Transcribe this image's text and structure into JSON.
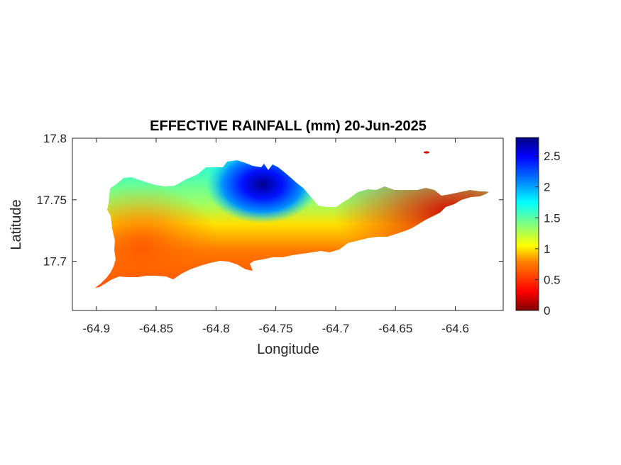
{
  "chart_data": {
    "type": "heatmap",
    "title": "EFFECTIVE RAINFALL (mm) 20-Jun-2025",
    "xlabel": "Longitude",
    "ylabel": "Latitude",
    "xlim": [
      -64.92,
      -64.56
    ],
    "ylim": [
      17.66,
      17.8
    ],
    "xticks": [
      -64.9,
      -64.85,
      -64.8,
      -64.75,
      -64.7,
      -64.65,
      -64.6
    ],
    "xtick_labels": [
      "-64.9",
      "-64.85",
      "-64.8",
      "-64.75",
      "-64.7",
      "-64.65",
      "-64.6"
    ],
    "yticks": [
      17.7,
      17.75,
      17.8
    ],
    "ytick_labels": [
      "17.7",
      "17.75",
      "17.8"
    ],
    "colorbar": {
      "range": [
        0,
        2.8
      ],
      "ticks": [
        0,
        0.5,
        1,
        1.5,
        2,
        2.5
      ],
      "tick_labels": [
        "0",
        "0.5",
        "1",
        "1.5",
        "2",
        "2.5"
      ],
      "colormap": "jet",
      "colors": [
        "#800000",
        "#ff0000",
        "#ff8000",
        "#ffff00",
        "#80ff80",
        "#00ffff",
        "#0080ff",
        "#0000ff",
        "#000080"
      ]
    },
    "grid": false,
    "peak": {
      "lon": -64.76,
      "lat": 17.765,
      "value": 2.8
    }
  }
}
